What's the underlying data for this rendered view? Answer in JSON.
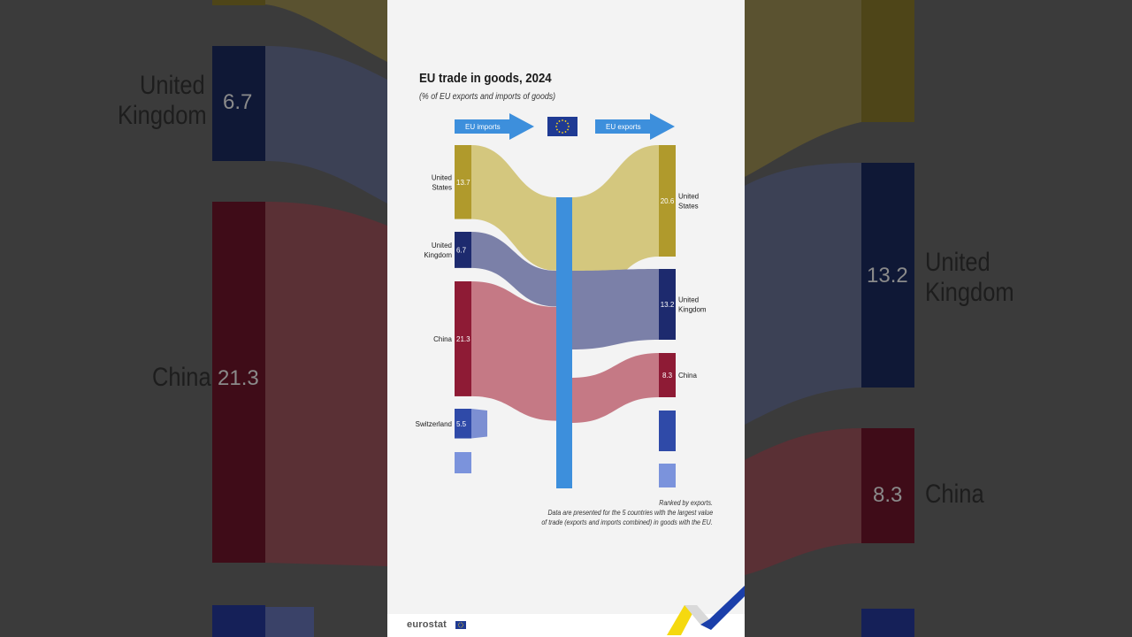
{
  "colors": {
    "united_states": "#b09a2c",
    "united_states_flow": "#d4c77e",
    "united_kingdom": "#1d2a6e",
    "united_kingdom_flow": "#7b80a8",
    "china": "#8e1b35",
    "china_flow": "#c57985",
    "switzerland": "#2f4aa8",
    "switzerland_flow": "#7c8fd2",
    "fifth": "#7b93dc",
    "eu_hub": "#3d8fdc",
    "arrow": "#3d8fdc",
    "eu_flag": "#1f3a93",
    "eu_stars": "#ffd617"
  },
  "chart_data": {
    "type": "sankey",
    "title": "EU trade in goods, 2024",
    "subtitle": "(% of EU exports and imports of goods)",
    "imports_label": "EU imports",
    "exports_label": "EU exports",
    "imports": [
      {
        "country": "United States",
        "label": "United States",
        "value": 13.7,
        "value_label": "13.7"
      },
      {
        "country": "United Kingdom",
        "label": "United Kingdom",
        "value": 6.7,
        "value_label": "6.7"
      },
      {
        "country": "China",
        "label": "China",
        "value": 21.3,
        "value_label": "21.3"
      },
      {
        "country": "Switzerland",
        "label": "Switzerland",
        "value": 5.5,
        "value_label": "5.5"
      }
    ],
    "exports": [
      {
        "country": "United States",
        "label": "United States",
        "value": 20.6,
        "value_label": "20.6"
      },
      {
        "country": "United Kingdom",
        "label": "United Kingdom",
        "value": 13.2,
        "value_label": "13.2"
      },
      {
        "country": "China",
        "label": "China",
        "value": 8.3,
        "value_label": "8.3"
      }
    ],
    "notes": [
      "Ranked by exports.",
      "Data are presented for the 5 countries with the largest value",
      "of trade (exports and imports combined) in goods with the EU."
    ]
  },
  "footer": {
    "logo_text": "eurostat"
  },
  "background": {
    "left_labels": [
      "United",
      "Kingdom",
      "China"
    ],
    "left_values": [
      "6.7",
      "21.3"
    ],
    "right_labels": [
      "United",
      "Kingdom",
      "China"
    ],
    "right_values": [
      "13.2",
      "8.3"
    ]
  }
}
